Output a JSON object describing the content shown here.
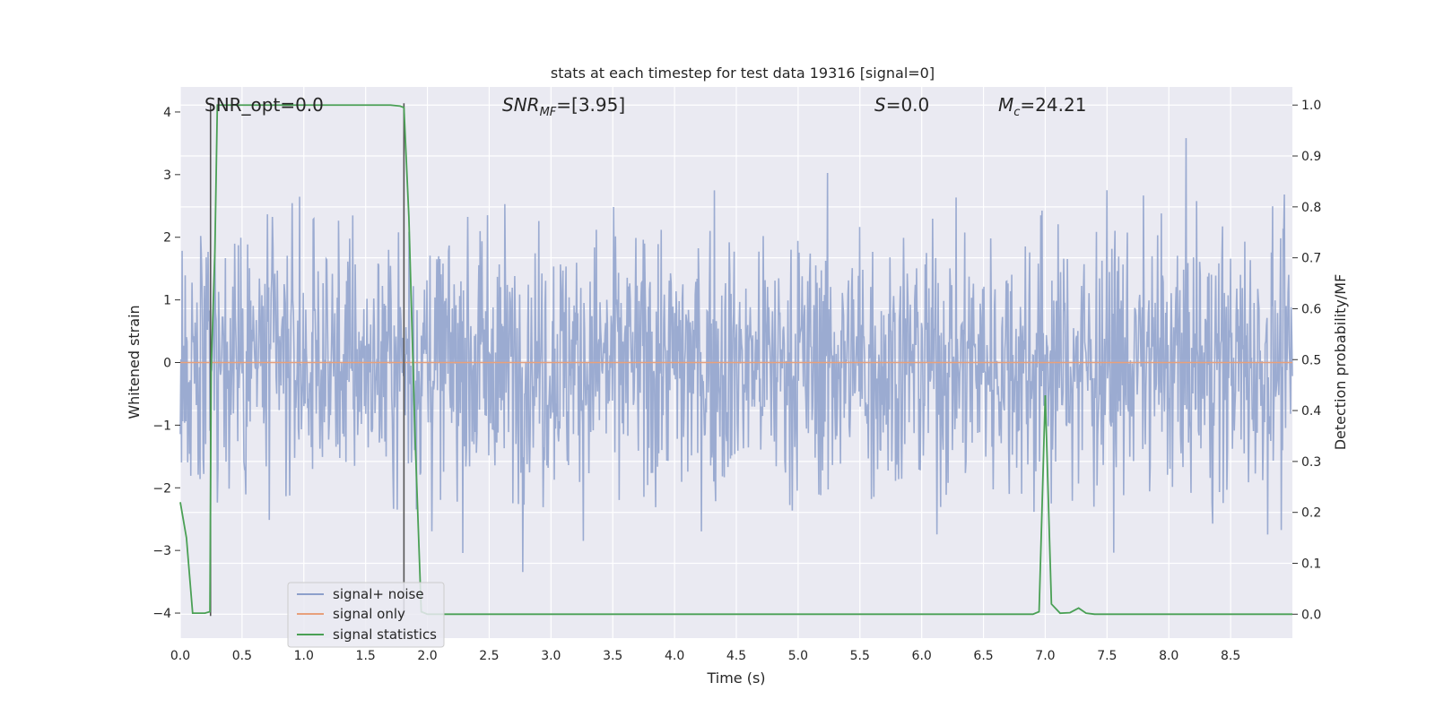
{
  "chart_data": {
    "type": "line",
    "title": "stats at each timestep for test data 19316 [signal=0]",
    "xlabel": "Time (s)",
    "ylabel": "Whitened strain",
    "y2label": "Detection probability/MF",
    "xlim": [
      0.0,
      9.0
    ],
    "ylim": [
      -4.4,
      4.4
    ],
    "y2lim": [
      -0.047,
      1.0356
    ],
    "x_ticks": [
      0.0,
      0.5,
      1.0,
      1.5,
      2.0,
      2.5,
      3.0,
      3.5,
      4.0,
      4.5,
      5.0,
      5.5,
      6.0,
      6.5,
      7.0,
      7.5,
      8.0,
      8.5
    ],
    "x_tick_labels": [
      "0.0",
      "0.5",
      "1.0",
      "1.5",
      "2.0",
      "2.5",
      "3.0",
      "3.5",
      "4.0",
      "4.5",
      "5.0",
      "5.5",
      "6.0",
      "6.5",
      "7.0",
      "7.5",
      "8.0",
      "8.5"
    ],
    "y_ticks": [
      4,
      3,
      2,
      1,
      0,
      -1,
      -2,
      -3,
      -4
    ],
    "y_tick_labels": [
      "4",
      "3",
      "2",
      "1",
      "0",
      "−1",
      "−2",
      "−3",
      "−4"
    ],
    "y2_ticks": [
      1.0,
      0.9,
      0.8,
      0.7,
      0.6,
      0.5,
      0.4,
      0.3,
      0.2,
      0.1,
      0.0
    ],
    "y2_tick_labels": [
      "1.0",
      "0.9",
      "0.8",
      "0.7",
      "0.6",
      "0.5",
      "0.4",
      "0.3",
      "0.2",
      "0.1",
      "0.0"
    ],
    "annotations": {
      "snr_opt": "SNR_opt=0.0",
      "snr_mf_main": "SNR",
      "snr_mf_sub": "MF",
      "snr_mf_value": "=[3.95]",
      "s_symbol": "S",
      "s_value": "=0.0",
      "mc_symbol": "M",
      "mc_sub": "c",
      "mc_value": "=24.21"
    },
    "vlines_x": [
      0.245,
      1.81
    ],
    "series": [
      {
        "name": "signal+ noise",
        "color": "#8da0cb",
        "description": "whitened noise, approx. Gaussian, sigma ~1, sampled across 0-9 s, peaks near +/-3.8"
      },
      {
        "name": "signal only",
        "color": "#e8a07b",
        "values_constant": 0.0
      },
      {
        "name": "signal statistics",
        "color": "#4aa055",
        "axis": "y2",
        "x": [
          0.0,
          0.05,
          0.1,
          0.2,
          0.24,
          0.25,
          0.28,
          0.3,
          0.35,
          0.5,
          1.0,
          1.5,
          1.7,
          1.78,
          1.81,
          1.85,
          1.9,
          1.95,
          2.0,
          2.5,
          3.0,
          3.5,
          4.0,
          4.5,
          5.0,
          5.5,
          6.0,
          6.5,
          6.9,
          6.95,
          7.0,
          7.05,
          7.12,
          7.2,
          7.27,
          7.33,
          7.4,
          7.5,
          8.0,
          8.5,
          9.0
        ],
        "values": [
          0.22,
          0.15,
          0.002,
          0.002,
          0.005,
          0.48,
          0.71,
          1.0,
          1.0,
          1.0,
          1.0,
          1.0,
          1.0,
          0.998,
          0.995,
          0.78,
          0.35,
          0.005,
          0.0,
          0.0,
          0.0,
          0.0,
          0.0,
          0.0,
          0.0,
          0.0,
          0.0,
          0.0,
          0.0,
          0.005,
          0.43,
          0.02,
          0.002,
          0.003,
          0.012,
          0.002,
          0.0,
          0.0,
          0.0,
          0.0,
          0.0
        ]
      }
    ],
    "legend": {
      "location": "lower-left",
      "entries": [
        "signal+ noise",
        "signal only",
        "signal statistics"
      ]
    },
    "style": {
      "plot_bg": "#eaeaf2",
      "grid": "#ffffff",
      "noise_color": "#8da0cb",
      "signal_color": "#e8a07b",
      "stat_color": "#4aa055",
      "vline_color": "#555555"
    }
  }
}
